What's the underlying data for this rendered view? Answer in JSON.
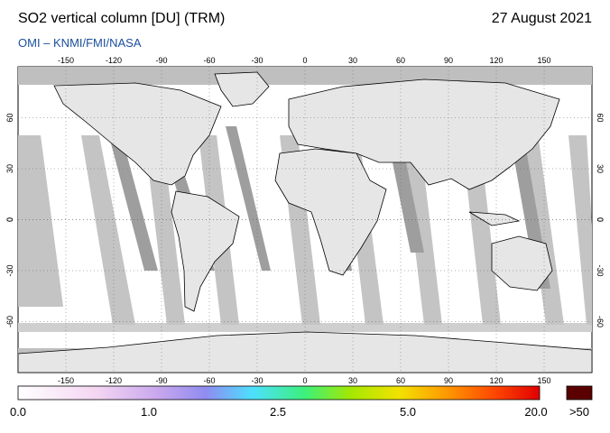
{
  "header": {
    "title": "SO2 vertical column [DU] (TRM)",
    "date": "27 August 2021",
    "source": "OMI  –  KNMI/FMI/NASA"
  },
  "map": {
    "lon_ticks": [
      -150,
      -120,
      -90,
      -60,
      -30,
      0,
      30,
      60,
      90,
      120,
      150
    ],
    "lat_ticks": [
      60,
      30,
      0,
      -30,
      -60
    ],
    "lon_range": [
      -180,
      180
    ],
    "lat_range": [
      -90,
      90
    ],
    "colors": {
      "background": "#ffffff",
      "nodata": "#bfbfbf",
      "landdark": "#9e9e9e",
      "coast": "#000000"
    }
  },
  "colorbar": {
    "labels": [
      "0.0",
      "1.0",
      "2.5",
      "5.0",
      "20.0"
    ],
    "overflow_label": ">50",
    "overflow_color": "#5a0000",
    "stops": [
      "#ffffff",
      "#f4d6f2",
      "#c8a6ee",
      "#8f8cf0",
      "#4de0ff",
      "#3cf07a",
      "#a6e800",
      "#f2e200",
      "#ff9a00",
      "#ff4a00",
      "#e00000"
    ]
  }
}
